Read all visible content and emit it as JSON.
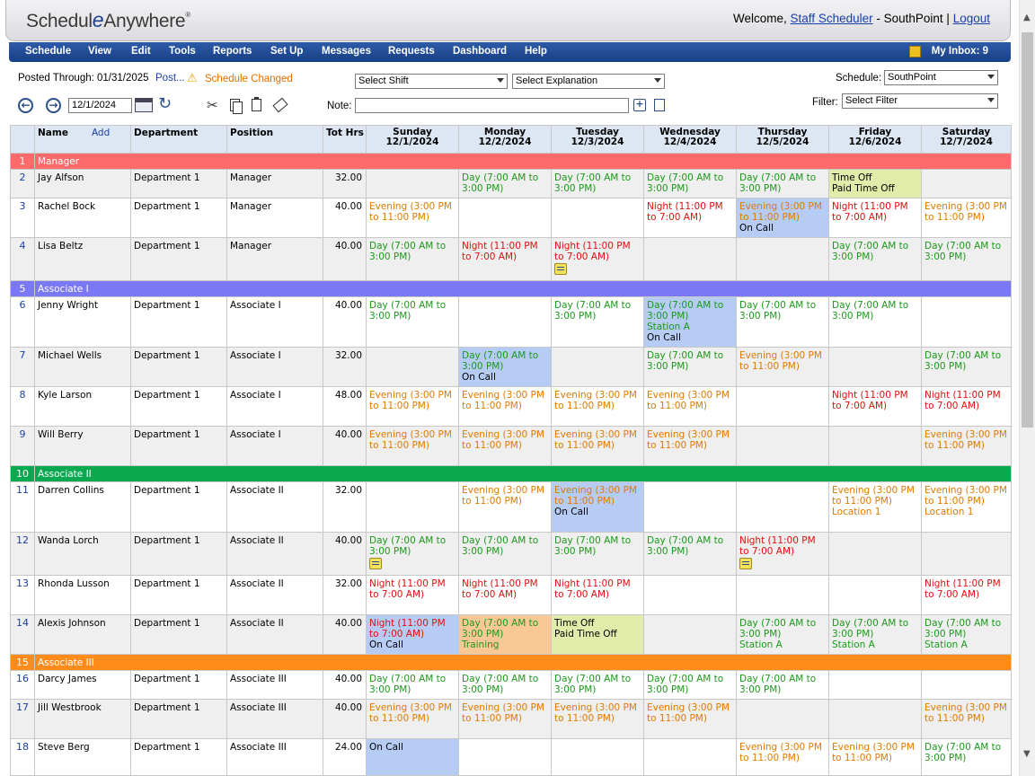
{
  "header": {
    "logo_text_pre": "Schedul",
    "logo_text_e": "e",
    "logo_text_post": "Anywhere",
    "logo_mark": "®",
    "welcome_prefix": "Welcome,",
    "user_link": "Staff Scheduler",
    "location": "- SouthPoint |",
    "logout": "Logout"
  },
  "menu": {
    "items": [
      "Schedule",
      "View",
      "Edit",
      "Tools",
      "Reports",
      "Set Up",
      "Messages",
      "Requests",
      "Dashboard",
      "Help"
    ],
    "inbox": "My Inbox: 9",
    "inbox_icon": "inbox-icon"
  },
  "toolbar": {
    "posted_through": "Posted Through: 01/31/2025",
    "post_link": "Post...",
    "warning_icon": "warning-icon",
    "schedule_changed": "Schedule Changed",
    "select_shift": "Select Shift",
    "select_explanation": "Select Explanation",
    "schedule_label": "Schedule:",
    "schedule_value": "SouthPoint",
    "date_value": "12/1/2024",
    "note_label": "Note:",
    "filter_label": "Filter:",
    "filter_value": "Select Filter",
    "icons": [
      "back-icon",
      "forward-icon",
      "calendar-icon",
      "refresh-icon",
      "cut-icon",
      "copy-icon",
      "paste-icon",
      "eraser-icon",
      "note-add-icon",
      "note-page-icon"
    ]
  },
  "grid": {
    "headers": {
      "name": "Name",
      "add": "Add",
      "department": "Department",
      "position": "Position",
      "tot_hrs": "Tot Hrs",
      "days": [
        {
          "day": "Sunday",
          "date": "12/1/2024"
        },
        {
          "day": "Monday",
          "date": "12/2/2024"
        },
        {
          "day": "Tuesday",
          "date": "12/3/2024"
        },
        {
          "day": "Wednesday",
          "date": "12/4/2024"
        },
        {
          "day": "Thursday",
          "date": "12/5/2024"
        },
        {
          "day": "Friday",
          "date": "12/6/2024"
        },
        {
          "day": "Saturday",
          "date": "12/7/2024"
        }
      ]
    },
    "group_colors": {
      "Manager": "#ff6b6b",
      "Associate I": "#7b78f5",
      "Associate II": "#0aa84f",
      "Associate III": "#ff8c1a"
    },
    "rows": [
      {
        "type": "group",
        "num": "1",
        "label": "Manager",
        "color": "#ff6b6b"
      },
      {
        "type": "emp",
        "num": "2",
        "name": "Jay Alfson",
        "dept": "Department 1",
        "pos": "Manager",
        "hrs": "32.00",
        "days": [
          null,
          {
            "kind": "day",
            "text": "Day (7:00 AM to 3:00 PM)"
          },
          {
            "kind": "day",
            "text": "Day (7:00 AM to 3:00 PM)"
          },
          {
            "kind": "day",
            "text": "Day (7:00 AM to 3:00 PM)"
          },
          {
            "kind": "day",
            "text": "Day (7:00 AM to 3:00 PM)"
          },
          {
            "kind": "timeoff",
            "text": "Time Off",
            "sub": "Paid Time Off",
            "sub_kind": "black",
            "bg": "lime"
          },
          null
        ]
      },
      {
        "type": "emp",
        "num": "3",
        "name": "Rachel Bock",
        "dept": "Department 1",
        "pos": "Manager",
        "hrs": "40.00",
        "days": [
          {
            "kind": "evening",
            "text": "Evening (3:00 PM to 11:00 PM)"
          },
          null,
          null,
          {
            "kind": "night",
            "text": "Night (11:00 PM to 7:00 AM)"
          },
          {
            "kind": "evening",
            "text": "Evening (3:00 PM to 11:00 PM)",
            "sub": "On Call",
            "sub_kind": "black",
            "bg": "blue"
          },
          {
            "kind": "night",
            "text": "Night (11:00 PM to 7:00 AM)"
          },
          {
            "kind": "evening",
            "text": "Evening (3:00 PM to 11:00 PM)"
          }
        ]
      },
      {
        "type": "emp",
        "num": "4",
        "name": "Lisa Beltz",
        "dept": "Department 1",
        "pos": "Manager",
        "hrs": "40.00",
        "days": [
          {
            "kind": "day",
            "text": "Day (7:00 AM to 3:00 PM)"
          },
          {
            "kind": "night",
            "text": "Night (11:00 PM to 7:00 AM)"
          },
          {
            "kind": "night",
            "text": "Night (11:00 PM to 7:00 AM)",
            "note": true
          },
          null,
          null,
          {
            "kind": "day",
            "text": "Day (7:00 AM to 3:00 PM)"
          },
          {
            "kind": "day",
            "text": "Day (7:00 AM to 3:00 PM)"
          }
        ]
      },
      {
        "type": "group",
        "num": "5",
        "label": "Associate I",
        "color": "#7b78f5"
      },
      {
        "type": "emp",
        "num": "6",
        "name": "Jenny Wright",
        "dept": "Department 1",
        "pos": "Associate I",
        "hrs": "40.00",
        "days": [
          {
            "kind": "day",
            "text": "Day (7:00 AM to 3:00 PM)"
          },
          null,
          {
            "kind": "day",
            "text": "Day (7:00 AM to 3:00 PM)"
          },
          {
            "kind": "day",
            "text": "Day (7:00 AM to 3:00 PM)",
            "sub": "Station A",
            "sub_kind": "green",
            "sub2": "On Call",
            "bg": "blue"
          },
          {
            "kind": "day",
            "text": "Day (7:00 AM to 3:00 PM)"
          },
          {
            "kind": "day",
            "text": "Day (7:00 AM to 3:00 PM)"
          },
          null
        ]
      },
      {
        "type": "emp",
        "num": "7",
        "name": "Michael Wells",
        "dept": "Department 1",
        "pos": "Associate I",
        "hrs": "32.00",
        "days": [
          null,
          {
            "kind": "day",
            "text": "Day (7:00 AM to 3:00 PM)",
            "sub": "On Call",
            "sub_kind": "black",
            "bg": "blue"
          },
          null,
          {
            "kind": "day",
            "text": "Day (7:00 AM to 3:00 PM)"
          },
          {
            "kind": "evening",
            "text": "Evening (3:00 PM to 11:00 PM)"
          },
          null,
          {
            "kind": "day",
            "text": "Day (7:00 AM to 3:00 PM)"
          }
        ]
      },
      {
        "type": "emp",
        "num": "8",
        "name": "Kyle Larson",
        "dept": "Department 1",
        "pos": "Associate I",
        "hrs": "48.00",
        "days": [
          {
            "kind": "evening",
            "text": "Evening (3:00 PM to 11:00 PM)"
          },
          {
            "kind": "evening",
            "text": "Evening (3:00 PM to 11:00 PM)"
          },
          {
            "kind": "evening",
            "text": "Evening (3:00 PM to 11:00 PM)"
          },
          {
            "kind": "evening",
            "text": "Evening (3:00 PM to 11:00 PM)"
          },
          null,
          {
            "kind": "night",
            "text": "Night (11:00 PM to 7:00 AM)"
          },
          {
            "kind": "night",
            "text": "Night (11:00 PM to 7:00 AM)"
          }
        ]
      },
      {
        "type": "emp",
        "num": "9",
        "name": "Will Berry",
        "dept": "Department 1",
        "pos": "Associate I",
        "hrs": "40.00",
        "days": [
          {
            "kind": "evening",
            "text": "Evening (3:00 PM to 11:00 PM)"
          },
          {
            "kind": "evening",
            "text": "Evening (3:00 PM to 11:00 PM)"
          },
          {
            "kind": "evening",
            "text": "Evening (3:00 PM to 11:00 PM)"
          },
          {
            "kind": "evening",
            "text": "Evening (3:00 PM to 11:00 PM)"
          },
          null,
          null,
          {
            "kind": "evening",
            "text": "Evening (3:00 PM to 11:00 PM)"
          }
        ]
      },
      {
        "type": "group",
        "num": "10",
        "label": "Associate II",
        "color": "#0aa84f"
      },
      {
        "type": "emp",
        "num": "11",
        "name": "Darren Collins",
        "dept": "Department 1",
        "pos": "Associate II",
        "hrs": "32.00",
        "days": [
          null,
          {
            "kind": "evening",
            "text": "Evening (3:00 PM to 11:00 PM)"
          },
          {
            "kind": "evening",
            "text": "Evening (3:00 PM to 11:00 PM)",
            "sub": "On Call",
            "sub_kind": "black",
            "bg": "blue"
          },
          null,
          null,
          {
            "kind": "evening",
            "text": "Evening (3:00 PM to 11:00 PM)",
            "sub": "Location 1",
            "sub_kind": "orange"
          },
          {
            "kind": "evening",
            "text": "Evening (3:00 PM to 11:00 PM)",
            "sub": "Location 1",
            "sub_kind": "orange"
          }
        ]
      },
      {
        "type": "emp",
        "num": "12",
        "name": "Wanda Lorch",
        "dept": "Department 1",
        "pos": "Associate II",
        "hrs": "40.00",
        "days": [
          {
            "kind": "day",
            "text": "Day (7:00 AM to 3:00 PM)",
            "note": true
          },
          {
            "kind": "day",
            "text": "Day (7:00 AM to 3:00 PM)"
          },
          {
            "kind": "day",
            "text": "Day (7:00 AM to 3:00 PM)"
          },
          {
            "kind": "day",
            "text": "Day (7:00 AM to 3:00 PM)"
          },
          {
            "kind": "night",
            "text": "Night (11:00 PM to 7:00 AM)",
            "note": true
          },
          null,
          null
        ]
      },
      {
        "type": "emp",
        "num": "13",
        "name": "Rhonda Lusson",
        "dept": "Department 1",
        "pos": "Associate II",
        "hrs": "32.00",
        "days": [
          {
            "kind": "night",
            "text": "Night (11:00 PM to 7:00 AM)"
          },
          {
            "kind": "night",
            "text": "Night (11:00 PM to 7:00 AM)"
          },
          {
            "kind": "night",
            "text": "Night (11:00 PM to 7:00 AM)"
          },
          null,
          null,
          null,
          {
            "kind": "night",
            "text": "Night (11:00 PM to 7:00 AM)"
          }
        ]
      },
      {
        "type": "emp",
        "num": "14",
        "name": "Alexis Johnson",
        "dept": "Department 1",
        "pos": "Associate II",
        "hrs": "40.00",
        "days": [
          {
            "kind": "night",
            "text": "Night (11:00 PM to 7:00 AM)",
            "sub": "On Call",
            "sub_kind": "black",
            "bg": "blue"
          },
          {
            "kind": "day",
            "text": "Day (7:00 AM to 3:00 PM)",
            "sub": "Training",
            "sub_kind": "green",
            "bg": "peach"
          },
          {
            "kind": "timeoff",
            "text": "Time Off",
            "sub": "Paid Time Off",
            "sub_kind": "black",
            "bg": "lime"
          },
          null,
          {
            "kind": "day",
            "text": "Day (7:00 AM to 3:00 PM)",
            "sub": "Station A",
            "sub_kind": "green"
          },
          {
            "kind": "day",
            "text": "Day (7:00 AM to 3:00 PM)",
            "sub": "Station A",
            "sub_kind": "green"
          },
          {
            "kind": "day",
            "text": "Day (7:00 AM to 3:00 PM)",
            "sub": "Station A",
            "sub_kind": "green"
          }
        ]
      },
      {
        "type": "group",
        "num": "15",
        "label": "Associate III",
        "color": "#ff8c1a"
      },
      {
        "type": "emp",
        "num": "16",
        "name": "Darcy James",
        "dept": "Department 1",
        "pos": "Associate III",
        "hrs": "40.00",
        "days": [
          {
            "kind": "day",
            "text": "Day (7:00 AM to 3:00 PM)"
          },
          {
            "kind": "day",
            "text": "Day (7:00 AM to 3:00 PM)"
          },
          {
            "kind": "day",
            "text": "Day (7:00 AM to 3:00 PM)"
          },
          {
            "kind": "day",
            "text": "Day (7:00 AM to 3:00 PM)"
          },
          {
            "kind": "day",
            "text": "Day (7:00 AM to 3:00 PM)"
          },
          null,
          null
        ]
      },
      {
        "type": "emp",
        "num": "17",
        "name": "Jill Westbrook",
        "dept": "Department 1",
        "pos": "Associate III",
        "hrs": "40.00",
        "days": [
          {
            "kind": "evening",
            "text": "Evening (3:00 PM to 11:00 PM)"
          },
          {
            "kind": "evening",
            "text": "Evening (3:00 PM to 11:00 PM)"
          },
          {
            "kind": "evening",
            "text": "Evening (3:00 PM to 11:00 PM)"
          },
          {
            "kind": "evening",
            "text": "Evening (3:00 PM to 11:00 PM)"
          },
          null,
          null,
          {
            "kind": "evening",
            "text": "Evening (3:00 PM to 11:00 PM)"
          }
        ]
      },
      {
        "type": "emp",
        "num": "18",
        "name": "Steve Berg",
        "dept": "Department 1",
        "pos": "Associate III",
        "hrs": "24.00",
        "days": [
          {
            "kind": "oncall",
            "text": "On Call",
            "bg": "blue"
          },
          null,
          null,
          null,
          {
            "kind": "evening",
            "text": "Evening (3:00 PM to 11:00 PM)"
          },
          {
            "kind": "evening",
            "text": "Evening (3:00 PM to 11:00 PM)"
          },
          {
            "kind": "day",
            "text": "Day (7:00 AM to 3:00 PM)"
          }
        ]
      }
    ]
  }
}
